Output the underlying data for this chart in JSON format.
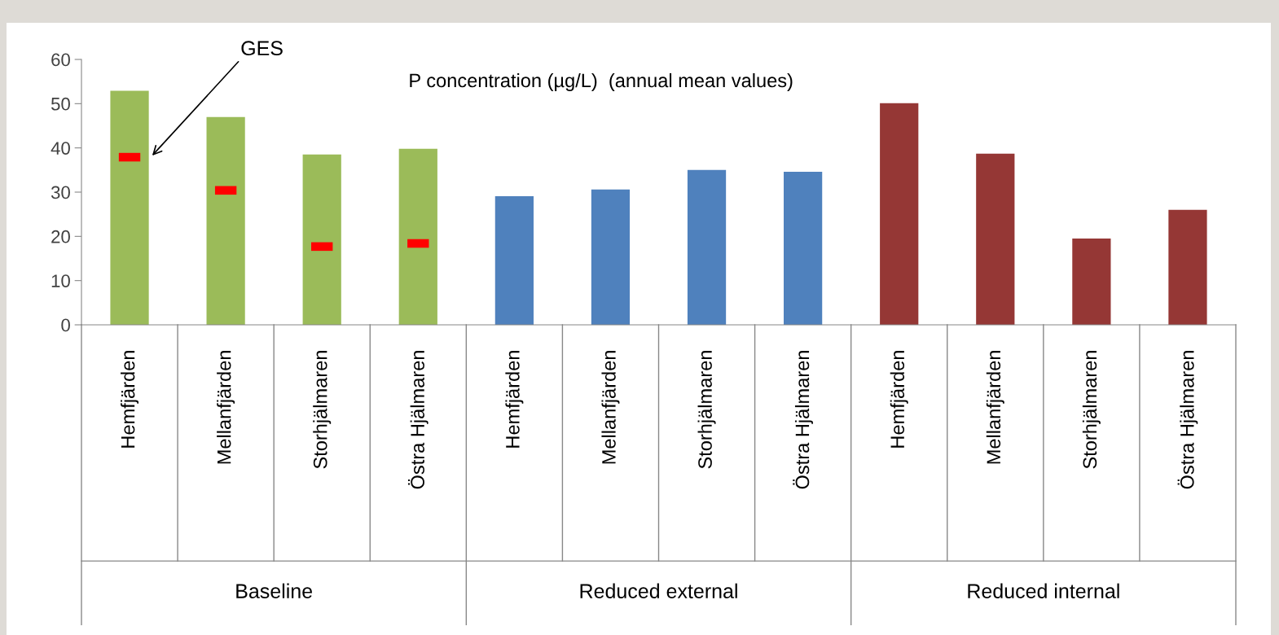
{
  "chart_data": {
    "type": "bar",
    "title": "P concentration (µg/L)  (annual mean values)",
    "categories": [
      "Hemfjärden",
      "Mellanfjärden",
      "Storhjälmaren",
      "Östra Hjälmaren",
      "Hemfjärden",
      "Mellanfjärden",
      "Storhjälmaren",
      "Östra Hjälmaren",
      "Hemfjärden",
      "Mellanfjärden",
      "Storhjälmaren",
      "Östra Hjälmaren"
    ],
    "series": [
      {
        "values": [
          52.9,
          47.0,
          38.5,
          39.8,
          29.1,
          30.6,
          35.0,
          34.6,
          50.1,
          38.7,
          19.5,
          26.0
        ],
        "colors": [
          "#9bbb59",
          "#9bbb59",
          "#9bbb59",
          "#9bbb59",
          "#4f81bd",
          "#4f81bd",
          "#4f81bd",
          "#4f81bd",
          "#953735",
          "#953735",
          "#953735",
          "#953735"
        ]
      },
      {
        "type": "scatter",
        "name": "GES",
        "color": "#ff0000",
        "values": [
          37.9,
          30.4,
          17.7,
          18.4,
          null,
          null,
          null,
          null,
          null,
          null,
          null,
          null
        ]
      }
    ],
    "annotations": [
      "Baseline",
      "Reduced external",
      "Reduced internal"
    ],
    "ylim": [
      0,
      60
    ],
    "yticks": [
      0,
      10,
      20,
      30,
      40,
      50,
      60
    ],
    "grid": false
  }
}
